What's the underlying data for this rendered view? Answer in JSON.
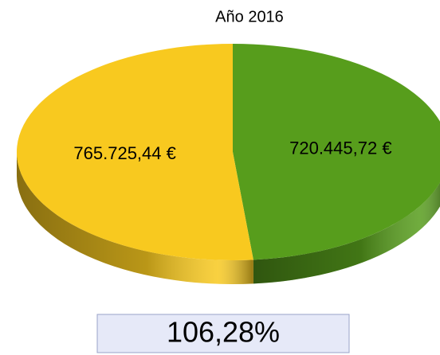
{
  "chart_data": {
    "type": "pie",
    "title": "Año 2016",
    "series": [
      {
        "values": [
          720445.72,
          765725.44
        ],
        "value_labels": [
          "720.445,72 €",
          "765.725,44 €"
        ],
        "colors": [
          "#579d1c",
          "#f8c91f"
        ]
      }
    ],
    "annotation": "106,28%"
  }
}
